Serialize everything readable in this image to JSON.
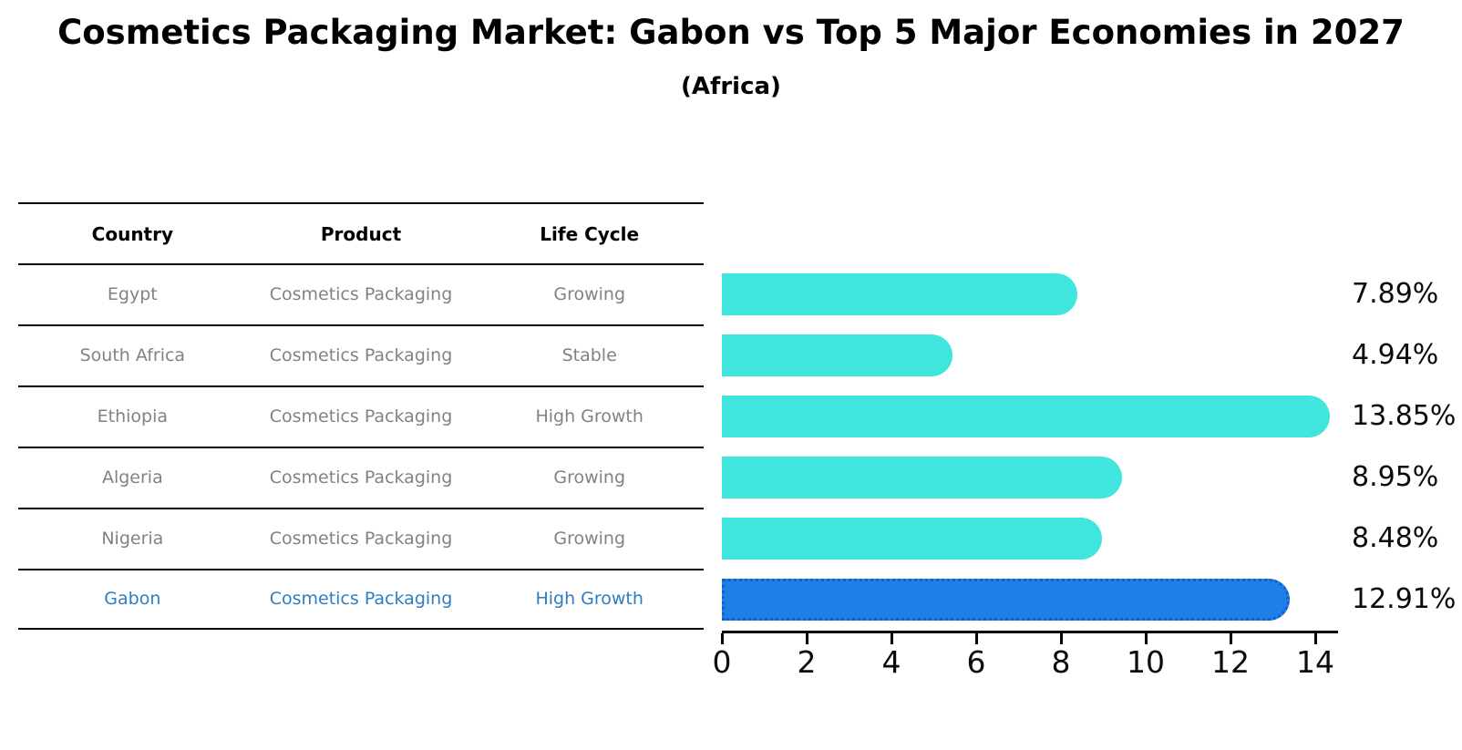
{
  "title": "Cosmetics Packaging Market: Gabon vs Top 5 Major Economies in 2027",
  "subtitle": "(Africa)",
  "table": {
    "headers": [
      "Country",
      "Product",
      "Life Cycle"
    ],
    "rows": [
      {
        "country": "Egypt",
        "product": "Cosmetics Packaging",
        "life_cycle": "Growing",
        "highlight": false
      },
      {
        "country": "South Africa",
        "product": "Cosmetics Packaging",
        "life_cycle": "Stable",
        "highlight": false
      },
      {
        "country": "Ethiopia",
        "product": "Cosmetics Packaging",
        "life_cycle": "High Growth",
        "highlight": false
      },
      {
        "country": "Algeria",
        "product": "Cosmetics Packaging",
        "life_cycle": "Growing",
        "highlight": false
      },
      {
        "country": "Nigeria",
        "product": "Cosmetics Packaging",
        "life_cycle": "Growing",
        "highlight": false
      },
      {
        "country": "Gabon",
        "product": "Cosmetics Packaging",
        "life_cycle": "High Growth",
        "highlight": true
      }
    ]
  },
  "chart_data": {
    "type": "bar",
    "orientation": "horizontal",
    "title": "Cosmetics Packaging Market: Gabon vs Top 5 Major Economies in 2027",
    "subtitle": "(Africa)",
    "categories": [
      "Egypt",
      "South Africa",
      "Ethiopia",
      "Algeria",
      "Nigeria",
      "Gabon"
    ],
    "values": [
      7.89,
      4.94,
      13.85,
      8.95,
      8.48,
      12.91
    ],
    "value_labels": [
      "7.89%",
      "4.94%",
      "13.85%",
      "8.95%",
      "8.48%",
      "12.91%"
    ],
    "xlabel": "",
    "ylabel": "",
    "xlim": [
      0,
      14.5
    ],
    "x_ticks": [
      0,
      2,
      4,
      6,
      8,
      10,
      12,
      14
    ],
    "grid": false,
    "legend": false,
    "highlight_index": 5
  },
  "colors": {
    "bar": "#40e6de",
    "highlight_bar": "#1e7fe8",
    "highlight_bar_border": "#1261c9",
    "table_text": "#828282",
    "table_header_text": "#000000",
    "highlight_row_text": "#2e7ebf",
    "axis": "#000000",
    "labels": "#0b0b0b"
  }
}
